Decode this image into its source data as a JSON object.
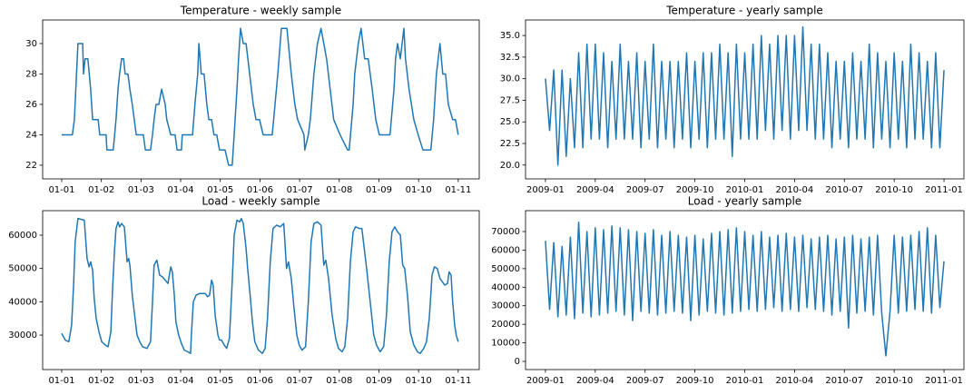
{
  "chart_data": [
    {
      "type": "line",
      "title": "Temperature - weekly sample",
      "color": "#1f77b4",
      "x": [
        0,
        0.27,
        0.32,
        0.41,
        0.53,
        0.55,
        0.59,
        0.66,
        0.73,
        0.78,
        0.92,
        0.96,
        1.12,
        1.14,
        1.3,
        1.37,
        1.42,
        1.46,
        1.51,
        1.56,
        1.6,
        1.67,
        1.72,
        1.78,
        1.83,
        1.88,
        2.06,
        2.11,
        2.24,
        2.29,
        2.33,
        2.38,
        2.45,
        2.52,
        2.61,
        2.65,
        2.75,
        2.86,
        2.91,
        3.02,
        3.04,
        3.3,
        3.36,
        3.43,
        3.46,
        3.52,
        3.59,
        3.66,
        3.71,
        3.78,
        3.84,
        3.91,
        3.98,
        4.12,
        4.21,
        4.3,
        4.35,
        4.42,
        4.46,
        4.51,
        4.58,
        4.65,
        4.74,
        4.83,
        4.9,
        4.99,
        5.08,
        5.31,
        5.38,
        5.45,
        5.54,
        5.68,
        5.79,
        5.88,
        5.95,
        6.11,
        6.13,
        6.22,
        6.27,
        6.36,
        6.45,
        6.54,
        6.68,
        6.77,
        6.86,
        7.02,
        7.21,
        7.25,
        7.35,
        7.39,
        7.48,
        7.55,
        7.64,
        7.73,
        7.83,
        7.92,
        8.01,
        8.28,
        8.38,
        8.42,
        8.47,
        8.54,
        8.63,
        8.67,
        8.76,
        8.88,
        8.99,
        9.11,
        9.31,
        9.38,
        9.45,
        9.54,
        9.61,
        9.68,
        9.75,
        9.86,
        9.93,
        10.0
      ],
      "values": [
        24,
        24,
        25,
        30,
        30,
        28,
        29,
        29,
        27,
        25,
        25,
        24,
        24,
        23,
        23,
        25,
        27,
        28,
        29,
        29,
        28,
        28,
        27,
        26,
        25,
        24,
        24,
        23,
        23,
        24,
        25,
        26,
        26,
        27,
        26,
        25,
        24,
        24,
        23,
        23,
        24,
        24,
        26,
        28,
        30,
        28,
        28,
        26,
        25,
        25,
        24,
        24,
        23,
        23,
        22,
        22,
        24,
        27,
        29,
        31,
        30,
        30,
        28,
        26,
        25,
        25,
        24,
        24,
        26,
        28,
        31,
        31,
        28,
        26,
        25,
        24,
        23,
        24,
        25,
        28,
        30,
        31,
        29,
        27,
        25,
        24,
        23,
        23,
        26,
        28,
        30,
        31,
        29,
        29,
        27,
        25,
        24,
        24,
        27,
        29,
        30,
        29,
        31,
        29,
        27,
        25,
        24,
        23,
        23,
        25,
        28,
        30,
        28,
        28,
        26,
        25,
        25,
        24
      ],
      "xlim": [
        -0.48,
        10.53
      ],
      "ylim": [
        21.1,
        31.55
      ],
      "xticks": [
        {
          "value": 0,
          "label": "01-01"
        },
        {
          "value": 1,
          "label": "01-02"
        },
        {
          "value": 2,
          "label": "01-03"
        },
        {
          "value": 3,
          "label": "01-04"
        },
        {
          "value": 4,
          "label": "01-05"
        },
        {
          "value": 5,
          "label": "01-06"
        },
        {
          "value": 6,
          "label": "01-07"
        },
        {
          "value": 7,
          "label": "01-08"
        },
        {
          "value": 8,
          "label": "01-09"
        },
        {
          "value": 9,
          "label": "01-10"
        },
        {
          "value": 10,
          "label": "01-11"
        }
      ],
      "yticks": [
        22,
        24,
        26,
        28,
        30
      ]
    },
    {
      "type": "line",
      "title": "Temperature - yearly sample",
      "color": "#1f77b4",
      "x": [
        0,
        0.25,
        0.5,
        0.75,
        1,
        1.25,
        1.5,
        1.75,
        2,
        2.25,
        2.5,
        2.75,
        3,
        3.25,
        3.5,
        3.75,
        4,
        4.25,
        4.5,
        4.75,
        5,
        5.25,
        5.5,
        5.75,
        6,
        6.25,
        6.5,
        6.75,
        7,
        7.25,
        7.5,
        7.75,
        8,
        8.25,
        8.5,
        8.75,
        9,
        9.25,
        9.5,
        9.75,
        10,
        10.25,
        10.5,
        10.75,
        11,
        11.25,
        11.5,
        11.75,
        12,
        12.25,
        12.5,
        12.75,
        13,
        13.25,
        13.5,
        13.75,
        14,
        14.25,
        14.5,
        14.75,
        15,
        15.25,
        15.5,
        15.75,
        16,
        16.25,
        16.5,
        16.75,
        17,
        17.25,
        17.5,
        17.75,
        18,
        18.25,
        18.5,
        18.75,
        19,
        19.25,
        19.5,
        19.75,
        20,
        20.25,
        20.5,
        20.75,
        21,
        21.25,
        21.5,
        21.75,
        22,
        22.25,
        22.5,
        22.75,
        23,
        23.25,
        23.5,
        23.75,
        24
      ],
      "values": [
        30,
        24,
        31,
        20,
        31,
        21,
        30,
        22,
        33,
        22,
        34,
        23,
        34,
        23,
        33,
        22,
        32,
        23,
        34,
        23,
        32,
        23,
        33,
        22,
        32,
        23,
        34,
        22,
        32,
        23,
        32,
        22,
        32,
        23,
        33,
        22,
        32,
        23,
        33,
        22,
        33,
        23,
        34,
        23,
        33,
        21,
        34,
        23,
        33,
        23,
        34,
        23,
        35,
        24,
        34,
        23,
        35,
        24,
        35,
        23,
        35,
        24,
        36,
        24,
        34,
        23,
        34,
        23,
        33,
        22,
        32,
        23,
        32,
        22,
        33,
        23,
        32,
        23,
        34,
        22,
        33,
        23,
        32,
        22,
        33,
        23,
        32,
        22,
        34,
        23,
        33,
        23,
        32,
        22,
        33,
        22,
        31
      ],
      "xlim": [
        -1.2,
        25.2
      ],
      "ylim": [
        18.4,
        36.8
      ],
      "xticks": [
        {
          "value": 0,
          "label": "2009-01"
        },
        {
          "value": 3,
          "label": "2009-04"
        },
        {
          "value": 6,
          "label": "2009-07"
        },
        {
          "value": 9,
          "label": "2009-10"
        },
        {
          "value": 12,
          "label": "2010-01"
        },
        {
          "value": 15,
          "label": "2010-04"
        },
        {
          "value": 18,
          "label": "2010-07"
        },
        {
          "value": 21,
          "label": "2010-10"
        },
        {
          "value": 24,
          "label": "2011-01"
        }
      ],
      "yticks": [
        {
          "value": 20,
          "label": "20.0"
        },
        22.5,
        {
          "value": 25,
          "label": "25.0"
        },
        27.5,
        {
          "value": 30,
          "label": "30.0"
        },
        32.5,
        {
          "value": 35,
          "label": "35.0"
        }
      ]
    },
    {
      "type": "line",
      "title": "Load - weekly sample",
      "color": "#1f77b4",
      "x": [
        0,
        0.09,
        0.18,
        0.25,
        0.3,
        0.34,
        0.41,
        0.57,
        0.64,
        0.69,
        0.73,
        0.78,
        0.82,
        0.87,
        0.94,
        1.01,
        1.1,
        1.17,
        1.24,
        1.28,
        1.33,
        1.37,
        1.42,
        1.46,
        1.51,
        1.58,
        1.65,
        1.69,
        1.72,
        1.78,
        1.85,
        1.9,
        1.97,
        2.04,
        2.15,
        2.24,
        2.29,
        2.33,
        2.4,
        2.47,
        2.54,
        2.61,
        2.68,
        2.75,
        2.79,
        2.84,
        2.88,
        2.95,
        3.02,
        3.09,
        3.18,
        3.25,
        3.27,
        3.32,
        3.39,
        3.48,
        3.62,
        3.68,
        3.73,
        3.78,
        3.82,
        3.87,
        3.94,
        3.98,
        4.03,
        4.1,
        4.16,
        4.23,
        4.3,
        4.35,
        4.42,
        4.49,
        4.53,
        4.58,
        4.65,
        4.69,
        4.76,
        4.81,
        4.87,
        4.96,
        5.06,
        5.13,
        5.19,
        5.26,
        5.33,
        5.42,
        5.51,
        5.6,
        5.67,
        5.72,
        5.79,
        5.86,
        5.93,
        5.99,
        6.06,
        6.15,
        6.22,
        6.29,
        6.36,
        6.45,
        6.54,
        6.61,
        6.66,
        6.73,
        6.82,
        6.91,
        6.98,
        7.07,
        7.14,
        7.21,
        7.28,
        7.35,
        7.41,
        7.51,
        7.57,
        7.62,
        7.69,
        7.78,
        7.87,
        7.94,
        8.03,
        8.12,
        8.19,
        8.26,
        8.33,
        8.4,
        8.47,
        8.54,
        8.6,
        8.65,
        8.72,
        8.79,
        8.88,
        8.97,
        9.04,
        9.13,
        9.2,
        9.27,
        9.34,
        9.4,
        9.47,
        9.54,
        9.66,
        9.73,
        9.77,
        9.82,
        9.86,
        9.91,
        9.95,
        10.0
      ],
      "values": [
        30500,
        28500,
        28000,
        33000,
        45000,
        58000,
        65000,
        64500,
        53000,
        50500,
        52000,
        49500,
        41000,
        35000,
        31000,
        28000,
        27000,
        26500,
        31000,
        43000,
        55000,
        62000,
        64000,
        62500,
        63500,
        62500,
        52000,
        53000,
        51000,
        42000,
        35000,
        30000,
        28000,
        26500,
        26000,
        28000,
        40000,
        51000,
        52500,
        48000,
        47500,
        46500,
        45500,
        50500,
        49000,
        42000,
        34000,
        30000,
        27500,
        25500,
        25000,
        24500,
        30000,
        40000,
        42000,
        42500,
        42500,
        41500,
        42000,
        46500,
        45000,
        36000,
        30000,
        28500,
        28500,
        27000,
        26000,
        29000,
        46000,
        60000,
        64500,
        64000,
        65000,
        63500,
        56000,
        50000,
        41000,
        34000,
        28000,
        25500,
        24500,
        26000,
        35000,
        52000,
        62000,
        63000,
        62500,
        63500,
        50000,
        52000,
        47000,
        38000,
        30000,
        27000,
        25500,
        26500,
        40000,
        58000,
        63500,
        64000,
        63000,
        51000,
        52500,
        47000,
        36000,
        29000,
        26000,
        25000,
        26500,
        35000,
        52000,
        61000,
        62500,
        62000,
        62000,
        57000,
        50000,
        40000,
        30000,
        27000,
        25000,
        26500,
        36000,
        52000,
        61000,
        62500,
        61000,
        60000,
        51000,
        50000,
        42000,
        31000,
        27000,
        25000,
        24500,
        26000,
        28000,
        35000,
        48000,
        50500,
        50000,
        47000,
        45000,
        45500,
        49000,
        48000,
        40000,
        33000,
        30000,
        28000
      ],
      "xlim": [
        -0.48,
        10.53
      ],
      "ylim": [
        19650,
        67360
      ],
      "xticks": [
        {
          "value": 0,
          "label": "01-01"
        },
        {
          "value": 1,
          "label": "01-02"
        },
        {
          "value": 2,
          "label": "01-03"
        },
        {
          "value": 3,
          "label": "01-04"
        },
        {
          "value": 4,
          "label": "01-05"
        },
        {
          "value": 5,
          "label": "01-06"
        },
        {
          "value": 6,
          "label": "01-07"
        },
        {
          "value": 7,
          "label": "01-08"
        },
        {
          "value": 8,
          "label": "01-09"
        },
        {
          "value": 9,
          "label": "01-10"
        },
        {
          "value": 10,
          "label": "01-11"
        }
      ],
      "yticks": [
        30000,
        40000,
        50000,
        60000
      ]
    },
    {
      "type": "line",
      "title": "Load - yearly sample",
      "color": "#1f77b4",
      "x": [
        0,
        0.25,
        0.5,
        0.75,
        1,
        1.25,
        1.5,
        1.75,
        2,
        2.25,
        2.5,
        2.75,
        3,
        3.25,
        3.5,
        3.75,
        4,
        4.25,
        4.5,
        4.75,
        5,
        5.25,
        5.5,
        5.75,
        6,
        6.25,
        6.5,
        6.75,
        7,
        7.25,
        7.5,
        7.75,
        8,
        8.25,
        8.5,
        8.75,
        9,
        9.25,
        9.5,
        9.75,
        10,
        10.25,
        10.5,
        10.75,
        11,
        11.25,
        11.5,
        11.75,
        12,
        12.25,
        12.5,
        12.75,
        13,
        13.25,
        13.5,
        13.75,
        14,
        14.25,
        14.5,
        14.75,
        15,
        15.25,
        15.5,
        15.75,
        16,
        16.25,
        16.5,
        16.75,
        17,
        17.25,
        17.5,
        17.75,
        18,
        18.25,
        18.5,
        18.75,
        19,
        19.25,
        19.5,
        19.75,
        20,
        20.25,
        20.5,
        20.75,
        21,
        21.25,
        21.5,
        21.75,
        22,
        22.25,
        22.5,
        22.75,
        23,
        23.25,
        23.5,
        23.75,
        24
      ],
      "values": [
        65000,
        28000,
        64000,
        24000,
        62000,
        25000,
        67000,
        23000,
        75000,
        26000,
        70000,
        24000,
        72000,
        25000,
        71000,
        26000,
        73000,
        27000,
        72000,
        25000,
        71000,
        22000,
        70000,
        27000,
        69000,
        26000,
        71000,
        25000,
        68000,
        26000,
        70000,
        27000,
        68000,
        26000,
        67000,
        22000,
        68000,
        25000,
        66000,
        27000,
        69000,
        26000,
        70000,
        25000,
        71000,
        26000,
        72000,
        27000,
        70000,
        28000,
        68000,
        27000,
        70000,
        28000,
        67000,
        29000,
        68000,
        27000,
        69000,
        28000,
        67000,
        27000,
        68000,
        29000,
        66000,
        28000,
        67000,
        27000,
        68000,
        25000,
        66000,
        27000,
        67000,
        18000,
        68000,
        26000,
        66000,
        27000,
        67000,
        25000,
        68000,
        26000,
        3000,
        27000,
        68000,
        26000,
        67000,
        27000,
        68000,
        28000,
        70000,
        27000,
        72000,
        26000,
        68000,
        29000,
        54000
      ],
      "xlim": [
        -1.2,
        25.2
      ],
      "ylim": [
        -4400,
        81260
      ],
      "xticks": [
        {
          "value": 0,
          "label": "2009-01"
        },
        {
          "value": 3,
          "label": "2009-04"
        },
        {
          "value": 6,
          "label": "2009-07"
        },
        {
          "value": 9,
          "label": "2009-10"
        },
        {
          "value": 12,
          "label": "2010-01"
        },
        {
          "value": 15,
          "label": "2010-04"
        },
        {
          "value": 18,
          "label": "2010-07"
        },
        {
          "value": 21,
          "label": "2010-10"
        },
        {
          "value": 24,
          "label": "2011-01"
        }
      ],
      "yticks": [
        0,
        10000,
        20000,
        30000,
        40000,
        50000,
        60000,
        70000
      ]
    }
  ]
}
